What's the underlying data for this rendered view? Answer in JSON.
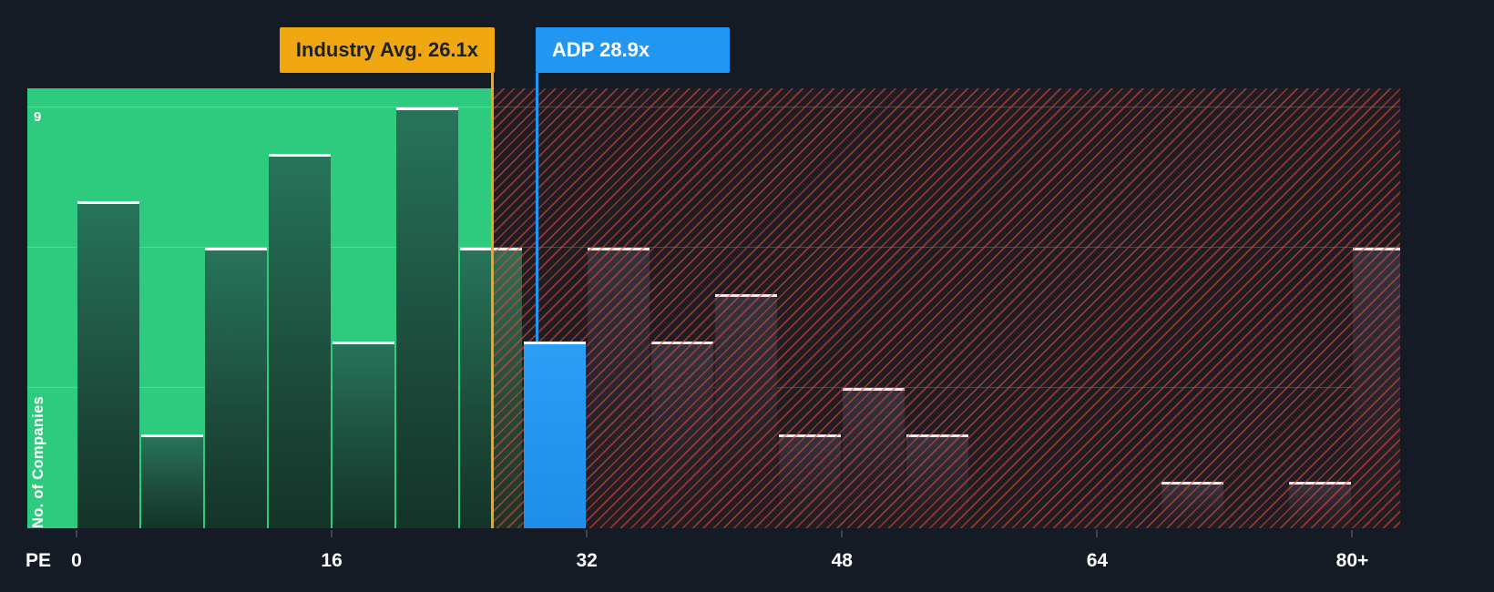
{
  "colors": {
    "background": "#141b24",
    "green_zone": "#2ecb7f",
    "hatch_red": "#e24c38",
    "company_blue": "#2196f3",
    "industry_gold": "#f0a711",
    "bar_cap": "#ffffff"
  },
  "labels": {
    "industry_avg": "Industry Avg. 26.1x",
    "company": "ADP 28.9x",
    "y_axis_title": "No. of Companies",
    "y_max": "9",
    "x_axis_title": "PE"
  },
  "chart_data": {
    "type": "bar",
    "title": "PE ratio distribution of companies with ADP vs industry average markers",
    "xlabel": "PE",
    "ylabel": "No. of Companies",
    "ylim": [
      0,
      9
    ],
    "x_axis_max": 83,
    "bin_width": 4,
    "grid_values": [
      3,
      6,
      9
    ],
    "grid_on": true,
    "x_ticks": [
      {
        "label": "0",
        "value": 0
      },
      {
        "label": "16",
        "value": 16
      },
      {
        "label": "32",
        "value": 32
      },
      {
        "label": "48",
        "value": 48
      },
      {
        "label": "64",
        "value": 64
      },
      {
        "label": "80+",
        "value": 80
      }
    ],
    "bins": [
      {
        "start": 0,
        "end": 4,
        "count": 7
      },
      {
        "start": 4,
        "end": 8,
        "count": 2
      },
      {
        "start": 8,
        "end": 12,
        "count": 6
      },
      {
        "start": 12,
        "end": 16,
        "count": 8
      },
      {
        "start": 16,
        "end": 20,
        "count": 4
      },
      {
        "start": 20,
        "end": 24,
        "count": 9
      },
      {
        "start": 24,
        "end": 28,
        "count": 6
      },
      {
        "start": 28,
        "end": 32,
        "count": 4
      },
      {
        "start": 32,
        "end": 36,
        "count": 6
      },
      {
        "start": 36,
        "end": 40,
        "count": 4
      },
      {
        "start": 40,
        "end": 44,
        "count": 5
      },
      {
        "start": 44,
        "end": 48,
        "count": 2
      },
      {
        "start": 48,
        "end": 52,
        "count": 3
      },
      {
        "start": 52,
        "end": 56,
        "count": 2
      },
      {
        "start": 68,
        "end": 72,
        "count": 1
      },
      {
        "start": 76,
        "end": 80,
        "count": 1
      },
      {
        "start": 80,
        "end": 84,
        "count": 6
      }
    ],
    "highlight_bin_start": 28,
    "markers": [
      {
        "name": "industry-average",
        "label": "Industry Avg. 26.1x",
        "value": 26.1,
        "color": "#f0a711",
        "text_color": "#1b222c",
        "align": "right",
        "line_to": "baseline"
      },
      {
        "name": "company",
        "label": "ADP 28.9x",
        "value": 28.9,
        "color": "#2196f3",
        "text_color": "#ffffff",
        "align": "left",
        "line_to": "bar_top"
      }
    ],
    "zones": [
      {
        "style": "green",
        "range": [
          0,
          26.1
        ],
        "meaning": "below industry average"
      },
      {
        "style": "red-hatch",
        "range": [
          26.1,
          83
        ],
        "meaning": "above industry average"
      }
    ],
    "legend_position": "none"
  }
}
